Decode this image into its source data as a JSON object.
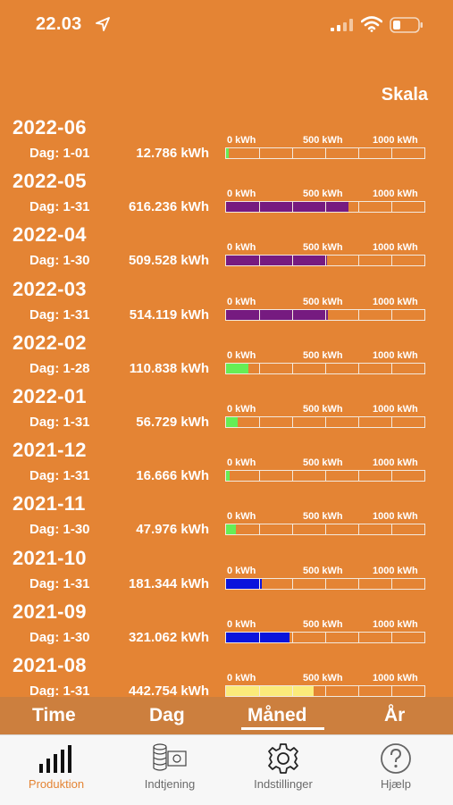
{
  "status_bar": {
    "time": "22.03"
  },
  "header": {
    "scale_label": "Skala"
  },
  "scale_labels": {
    "zero": "0 kWh",
    "mid": "500 kWh",
    "max": "1000 kWh"
  },
  "rows": [
    {
      "month": "2022-06",
      "days": "Dag: 1-01",
      "kwh": "12.786 kWh",
      "fill_fraction": 0.013,
      "color": "#66EE55"
    },
    {
      "month": "2022-05",
      "days": "Dag: 1-31",
      "kwh": "616.236 kWh",
      "fill_fraction": 0.616,
      "color": "#761B80"
    },
    {
      "month": "2022-04",
      "days": "Dag: 1-30",
      "kwh": "509.528 kWh",
      "fill_fraction": 0.51,
      "color": "#761B80"
    },
    {
      "month": "2022-03",
      "days": "Dag: 1-31",
      "kwh": "514.119 kWh",
      "fill_fraction": 0.514,
      "color": "#761B80"
    },
    {
      "month": "2022-02",
      "days": "Dag: 1-28",
      "kwh": "110.838 kWh",
      "fill_fraction": 0.111,
      "color": "#66EE55"
    },
    {
      "month": "2022-01",
      "days": "Dag: 1-31",
      "kwh": "56.729 kWh",
      "fill_fraction": 0.057,
      "color": "#66EE55"
    },
    {
      "month": "2021-12",
      "days": "Dag: 1-31",
      "kwh": "16.666 kWh",
      "fill_fraction": 0.017,
      "color": "#66EE55"
    },
    {
      "month": "2021-11",
      "days": "Dag: 1-30",
      "kwh": "47.976 kWh",
      "fill_fraction": 0.048,
      "color": "#66EE55"
    },
    {
      "month": "2021-10",
      "days": "Dag: 1-31",
      "kwh": "181.344 kWh",
      "fill_fraction": 0.181,
      "color": "#0A14DC"
    },
    {
      "month": "2021-09",
      "days": "Dag: 1-30",
      "kwh": "321.062 kWh",
      "fill_fraction": 0.321,
      "color": "#0A14DC"
    },
    {
      "month": "2021-08",
      "days": "Dag: 1-31",
      "kwh": "442.754 kWh",
      "fill_fraction": 0.443,
      "color": "#FBEB7A"
    }
  ],
  "period_tabs": {
    "time": "Time",
    "dag": "Dag",
    "maned": "Måned",
    "ar": "År",
    "selected": "Måned"
  },
  "tab_bar": {
    "produktion": "Produktion",
    "indtjening": "Indtjening",
    "indstillinger": "Indstillinger",
    "hjaelp": "Hjælp",
    "active": "Produktion",
    "active_color": "#E48434"
  },
  "icons": [
    "location-arrow-icon",
    "signal-icon",
    "wifi-icon",
    "battery-icon",
    "bar-chart-icon",
    "coins-money-icon",
    "gear-icon",
    "question-icon"
  ]
}
